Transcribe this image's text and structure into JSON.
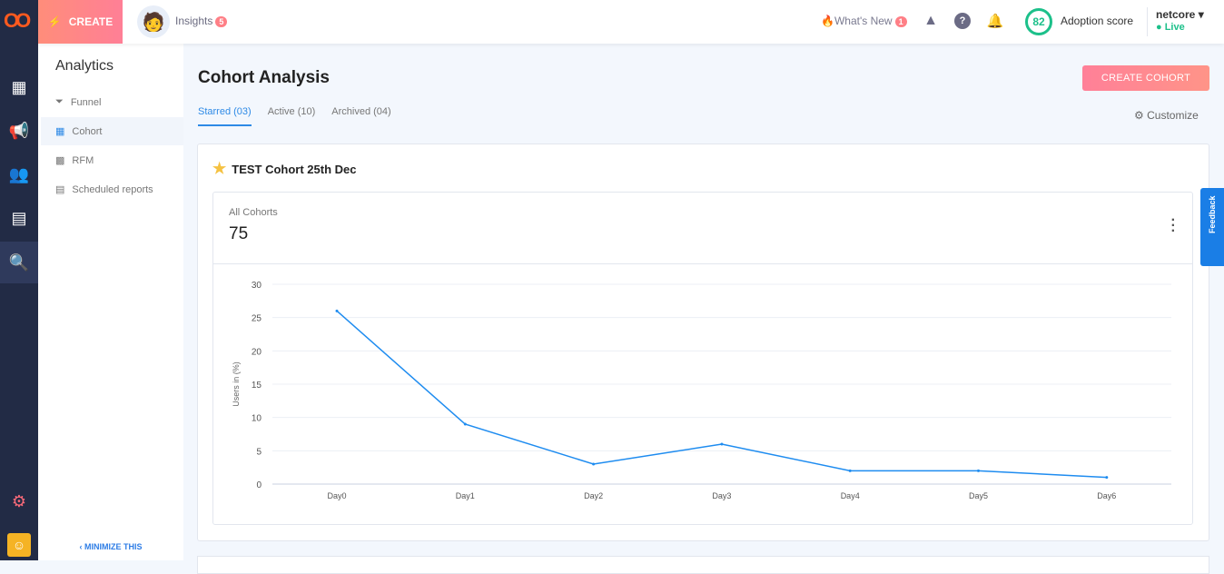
{
  "topbar": {
    "create_label": "CREATE",
    "insights_label": "Insights",
    "insights_count": "5",
    "whats_new": "What's New",
    "whats_new_count": "1",
    "adoption_score": "82",
    "adoption_label": "Adoption score",
    "account": "netcore",
    "status": "Live"
  },
  "sidebar": {
    "title": "Analytics",
    "items": [
      {
        "label": "Funnel",
        "icon": "funnel-icon"
      },
      {
        "label": "Cohort",
        "icon": "table-icon"
      },
      {
        "label": "RFM",
        "icon": "rfm-icon"
      },
      {
        "label": "Scheduled reports",
        "icon": "report-icon"
      }
    ],
    "minimize": "MINIMIZE THIS"
  },
  "page": {
    "title": "Cohort Analysis",
    "create_button": "CREATE COHORT",
    "customize": "Customize",
    "tabs": [
      {
        "label": "Starred (03)"
      },
      {
        "label": "Active (10)"
      },
      {
        "label": "Archived (04)"
      }
    ]
  },
  "card": {
    "title": "TEST Cohort 25th Dec",
    "subtitle": "All Cohorts",
    "count": "75"
  },
  "feedback": "Feedback",
  "colors": {
    "accent": "#2e8ae6",
    "line": "#1e8cf0",
    "brand": "#ff7f96"
  },
  "chart_data": {
    "type": "line",
    "categories": [
      "Day0",
      "Day1",
      "Day2",
      "Day3",
      "Day4",
      "Day5",
      "Day6"
    ],
    "values": [
      26,
      9,
      3,
      6,
      2,
      2,
      1
    ],
    "ylabel": "Users in (%)",
    "ylim": [
      0,
      30
    ],
    "yticks": [
      "0",
      "5",
      "10",
      "15",
      "20",
      "25",
      "30"
    ],
    "grid": true
  }
}
